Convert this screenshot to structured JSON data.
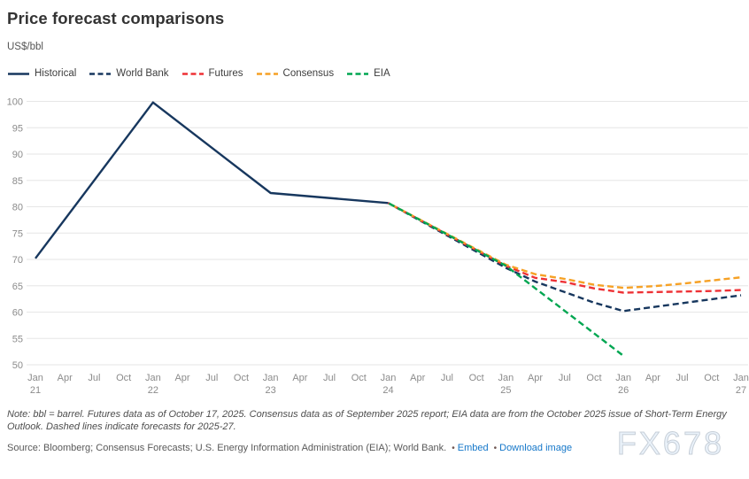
{
  "header": {
    "title": "Price forecast comparisons",
    "unit_label": "US$/bbl"
  },
  "colors": {
    "navy": "#17375e",
    "red": "#ee3135",
    "orange": "#f6a125",
    "green": "#00a651",
    "grid": "#e6e6e6",
    "tick_text": "#8b8b8b",
    "link_blue": "#1577c9"
  },
  "chart_data": {
    "type": "line",
    "title": "Price forecast comparisons",
    "ylabel": "US$/bbl",
    "ylim": [
      50,
      100
    ],
    "y_ticks": [
      50,
      55,
      60,
      65,
      70,
      75,
      80,
      85,
      90,
      95,
      100
    ],
    "grid": true,
    "legend_position": "top-left",
    "x_unit": "quarters from Jan 2021",
    "x_ticks": [
      {
        "m": "Jan",
        "y": "21"
      },
      {
        "m": "Apr"
      },
      {
        "m": "Jul"
      },
      {
        "m": "Oct"
      },
      {
        "m": "Jan",
        "y": "22"
      },
      {
        "m": "Apr"
      },
      {
        "m": "Jul"
      },
      {
        "m": "Oct"
      },
      {
        "m": "Jan",
        "y": "23"
      },
      {
        "m": "Apr"
      },
      {
        "m": "Jul"
      },
      {
        "m": "Oct"
      },
      {
        "m": "Jan",
        "y": "24"
      },
      {
        "m": "Apr"
      },
      {
        "m": "Jul"
      },
      {
        "m": "Oct"
      },
      {
        "m": "Jan",
        "y": "25"
      },
      {
        "m": "Apr"
      },
      {
        "m": "Jul"
      },
      {
        "m": "Oct"
      },
      {
        "m": "Jan",
        "y": "26"
      },
      {
        "m": "Apr"
      },
      {
        "m": "Jul"
      },
      {
        "m": "Oct"
      },
      {
        "m": "Jan",
        "y": "27"
      }
    ],
    "series": [
      {
        "name": "Historical",
        "color": "#17375e",
        "dashed": false,
        "points": [
          [
            0,
            70.2
          ],
          [
            4,
            99.8
          ],
          [
            8,
            82.6
          ],
          [
            12,
            80.7
          ]
        ]
      },
      {
        "name": "World Bank",
        "color": "#17375e",
        "dashed": true,
        "points": [
          [
            12,
            80.7
          ],
          [
            16,
            68.4
          ],
          [
            17,
            65.8
          ],
          [
            18,
            63.8
          ],
          [
            19,
            61.8
          ],
          [
            20,
            60.2
          ],
          [
            24,
            63.2
          ]
        ]
      },
      {
        "name": "Futures",
        "color": "#ee3135",
        "dashed": true,
        "points": [
          [
            12,
            80.7
          ],
          [
            16,
            68.8
          ],
          [
            17,
            66.5
          ],
          [
            18,
            65.7
          ],
          [
            19,
            64.5
          ],
          [
            20,
            63.7
          ],
          [
            21,
            63.8
          ],
          [
            22,
            63.9
          ],
          [
            23,
            64.0
          ],
          [
            24,
            64.2
          ]
        ]
      },
      {
        "name": "Consensus",
        "color": "#f6a125",
        "dashed": true,
        "points": [
          [
            12,
            80.7
          ],
          [
            16,
            69.0
          ],
          [
            17,
            67.2
          ],
          [
            18,
            66.3
          ],
          [
            19,
            65.2
          ],
          [
            20,
            64.6
          ],
          [
            21,
            64.9
          ],
          [
            22,
            65.4
          ],
          [
            23,
            66.0
          ],
          [
            24,
            66.6
          ]
        ]
      },
      {
        "name": "EIA",
        "color": "#00a651",
        "dashed": true,
        "points": [
          [
            12,
            80.7
          ],
          [
            16,
            68.8
          ],
          [
            20,
            51.7
          ]
        ]
      }
    ]
  },
  "footer": {
    "note": "Note: bbl = barrel. Futures data as of October 17, 2025. Consensus data as of September 2025 report; EIA data are from the October 2025 issue of Short-Term Energy Outlook. Dashed lines indicate forecasts for 2025-27.",
    "source": "Source: Bloomberg; Consensus Forecasts; U.S. Energy Information Administration (EIA); World Bank.",
    "bullet": "•",
    "links": [
      {
        "label": "Embed"
      },
      {
        "label": "Download image"
      }
    ],
    "watermark": "FX678"
  }
}
